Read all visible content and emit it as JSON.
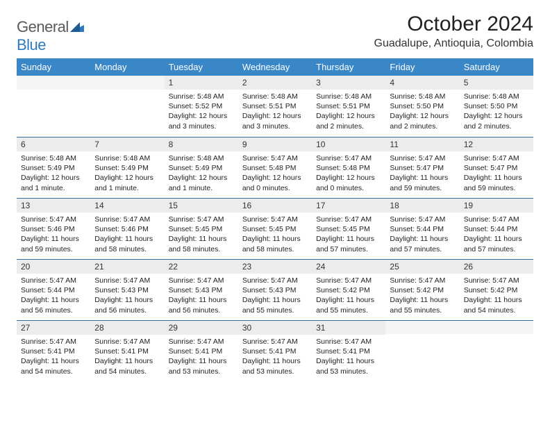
{
  "logo": {
    "text1": "General",
    "text2": "Blue"
  },
  "title": "October 2024",
  "location": "Guadalupe, Antioquia, Colombia",
  "colors": {
    "header_bg": "#3a87c8",
    "header_text": "#ffffff",
    "daynum_bg": "#ececec",
    "row_border": "#2f6fa3",
    "logo_gray": "#5a5a5a",
    "logo_blue": "#2f7abf"
  },
  "fonts": {
    "title_size": 30,
    "location_size": 16,
    "header_size": 13,
    "daynum_size": 12,
    "body_size": 10.5
  },
  "day_labels": [
    "Sunday",
    "Monday",
    "Tuesday",
    "Wednesday",
    "Thursday",
    "Friday",
    "Saturday"
  ],
  "weeks": [
    [
      null,
      null,
      {
        "n": "1",
        "sunrise": "5:48 AM",
        "sunset": "5:52 PM",
        "daylight": "12 hours and 3 minutes."
      },
      {
        "n": "2",
        "sunrise": "5:48 AM",
        "sunset": "5:51 PM",
        "daylight": "12 hours and 3 minutes."
      },
      {
        "n": "3",
        "sunrise": "5:48 AM",
        "sunset": "5:51 PM",
        "daylight": "12 hours and 2 minutes."
      },
      {
        "n": "4",
        "sunrise": "5:48 AM",
        "sunset": "5:50 PM",
        "daylight": "12 hours and 2 minutes."
      },
      {
        "n": "5",
        "sunrise": "5:48 AM",
        "sunset": "5:50 PM",
        "daylight": "12 hours and 2 minutes."
      }
    ],
    [
      {
        "n": "6",
        "sunrise": "5:48 AM",
        "sunset": "5:49 PM",
        "daylight": "12 hours and 1 minute."
      },
      {
        "n": "7",
        "sunrise": "5:48 AM",
        "sunset": "5:49 PM",
        "daylight": "12 hours and 1 minute."
      },
      {
        "n": "8",
        "sunrise": "5:48 AM",
        "sunset": "5:49 PM",
        "daylight": "12 hours and 1 minute."
      },
      {
        "n": "9",
        "sunrise": "5:47 AM",
        "sunset": "5:48 PM",
        "daylight": "12 hours and 0 minutes."
      },
      {
        "n": "10",
        "sunrise": "5:47 AM",
        "sunset": "5:48 PM",
        "daylight": "12 hours and 0 minutes."
      },
      {
        "n": "11",
        "sunrise": "5:47 AM",
        "sunset": "5:47 PM",
        "daylight": "11 hours and 59 minutes."
      },
      {
        "n": "12",
        "sunrise": "5:47 AM",
        "sunset": "5:47 PM",
        "daylight": "11 hours and 59 minutes."
      }
    ],
    [
      {
        "n": "13",
        "sunrise": "5:47 AM",
        "sunset": "5:46 PM",
        "daylight": "11 hours and 59 minutes."
      },
      {
        "n": "14",
        "sunrise": "5:47 AM",
        "sunset": "5:46 PM",
        "daylight": "11 hours and 58 minutes."
      },
      {
        "n": "15",
        "sunrise": "5:47 AM",
        "sunset": "5:45 PM",
        "daylight": "11 hours and 58 minutes."
      },
      {
        "n": "16",
        "sunrise": "5:47 AM",
        "sunset": "5:45 PM",
        "daylight": "11 hours and 58 minutes."
      },
      {
        "n": "17",
        "sunrise": "5:47 AM",
        "sunset": "5:45 PM",
        "daylight": "11 hours and 57 minutes."
      },
      {
        "n": "18",
        "sunrise": "5:47 AM",
        "sunset": "5:44 PM",
        "daylight": "11 hours and 57 minutes."
      },
      {
        "n": "19",
        "sunrise": "5:47 AM",
        "sunset": "5:44 PM",
        "daylight": "11 hours and 57 minutes."
      }
    ],
    [
      {
        "n": "20",
        "sunrise": "5:47 AM",
        "sunset": "5:44 PM",
        "daylight": "11 hours and 56 minutes."
      },
      {
        "n": "21",
        "sunrise": "5:47 AM",
        "sunset": "5:43 PM",
        "daylight": "11 hours and 56 minutes."
      },
      {
        "n": "22",
        "sunrise": "5:47 AM",
        "sunset": "5:43 PM",
        "daylight": "11 hours and 56 minutes."
      },
      {
        "n": "23",
        "sunrise": "5:47 AM",
        "sunset": "5:43 PM",
        "daylight": "11 hours and 55 minutes."
      },
      {
        "n": "24",
        "sunrise": "5:47 AM",
        "sunset": "5:42 PM",
        "daylight": "11 hours and 55 minutes."
      },
      {
        "n": "25",
        "sunrise": "5:47 AM",
        "sunset": "5:42 PM",
        "daylight": "11 hours and 55 minutes."
      },
      {
        "n": "26",
        "sunrise": "5:47 AM",
        "sunset": "5:42 PM",
        "daylight": "11 hours and 54 minutes."
      }
    ],
    [
      {
        "n": "27",
        "sunrise": "5:47 AM",
        "sunset": "5:41 PM",
        "daylight": "11 hours and 54 minutes."
      },
      {
        "n": "28",
        "sunrise": "5:47 AM",
        "sunset": "5:41 PM",
        "daylight": "11 hours and 54 minutes."
      },
      {
        "n": "29",
        "sunrise": "5:47 AM",
        "sunset": "5:41 PM",
        "daylight": "11 hours and 53 minutes."
      },
      {
        "n": "30",
        "sunrise": "5:47 AM",
        "sunset": "5:41 PM",
        "daylight": "11 hours and 53 minutes."
      },
      {
        "n": "31",
        "sunrise": "5:47 AM",
        "sunset": "5:41 PM",
        "daylight": "11 hours and 53 minutes."
      },
      null,
      null
    ]
  ]
}
